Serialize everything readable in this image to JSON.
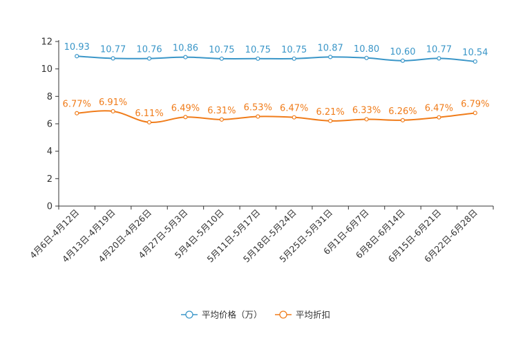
{
  "chart_data": {
    "type": "line",
    "categories": [
      "4月6日-4月12日",
      "4月13日-4月19日",
      "4月20日-4月26日",
      "4月27日-5月3日",
      "5月4日-5月10日",
      "5月11日-5月17日",
      "5月18日-5月24日",
      "5月25日-5月31日",
      "6月1日-6月7日",
      "6月8日-6月14日",
      "6月15日-6月21日",
      "6月22日-6月28日"
    ],
    "series": [
      {
        "name": "平均价格（万）",
        "color": "#3a96c8",
        "values": [
          10.93,
          10.77,
          10.76,
          10.86,
          10.75,
          10.75,
          10.75,
          10.87,
          10.8,
          10.6,
          10.77,
          10.54
        ],
        "labels": [
          "10.93",
          "10.77",
          "10.76",
          "10.86",
          "10.75",
          "10.75",
          "10.75",
          "10.87",
          "10.80",
          "10.60",
          "10.77",
          "10.54"
        ]
      },
      {
        "name": "平均折扣",
        "color": "#f07c1a",
        "values": [
          6.77,
          6.91,
          6.11,
          6.49,
          6.31,
          6.53,
          6.47,
          6.21,
          6.33,
          6.26,
          6.47,
          6.79
        ],
        "labels": [
          "6.77%",
          "6.91%",
          "6.11%",
          "6.49%",
          "6.31%",
          "6.53%",
          "6.47%",
          "6.21%",
          "6.33%",
          "6.26%",
          "6.47%",
          "6.79%"
        ]
      }
    ],
    "yticks": [
      "0",
      "2",
      "4",
      "6",
      "8",
      "10",
      "12"
    ],
    "ylim": [
      0,
      12
    ],
    "title": "",
    "xlabel": "",
    "ylabel": "",
    "legend_position": "bottom-center"
  }
}
